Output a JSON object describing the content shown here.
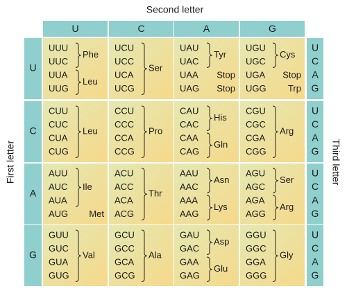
{
  "labels": {
    "second": "Second letter",
    "first": "First letter",
    "third": "Third letter"
  },
  "columns": [
    "U",
    "C",
    "A",
    "G"
  ],
  "rows": [
    {
      "first": "U",
      "third": [
        "U",
        "C",
        "A",
        "G"
      ],
      "cells": [
        {
          "groups": [
            {
              "amino_acid": "Phe",
              "codons": [
                "UUU",
                "UUC"
              ]
            },
            {
              "amino_acid": "Leu",
              "codons": [
                "UUA",
                "UUG"
              ]
            }
          ]
        },
        {
          "groups": [
            {
              "amino_acid": "Ser",
              "codons": [
                "UCU",
                "UCC",
                "UCA",
                "UCG"
              ]
            }
          ]
        },
        {
          "groups": [
            {
              "amino_acid": "Tyr",
              "codons": [
                "UAU",
                "UAC"
              ]
            },
            {
              "amino_acid": "Stop",
              "codons": [
                "UAA"
              ]
            },
            {
              "amino_acid": "Stop",
              "codons": [
                "UAG"
              ]
            }
          ]
        },
        {
          "groups": [
            {
              "amino_acid": "Cys",
              "codons": [
                "UGU",
                "UGC"
              ]
            },
            {
              "amino_acid": "Stop",
              "codons": [
                "UGA"
              ]
            },
            {
              "amino_acid": "Trp",
              "codons": [
                "UGG"
              ]
            }
          ]
        }
      ]
    },
    {
      "first": "C",
      "third": [
        "U",
        "C",
        "A",
        "G"
      ],
      "cells": [
        {
          "groups": [
            {
              "amino_acid": "Leu",
              "codons": [
                "CUU",
                "CUC",
                "CUA",
                "CUG"
              ]
            }
          ]
        },
        {
          "groups": [
            {
              "amino_acid": "Pro",
              "codons": [
                "CCU",
                "CCC",
                "CCA",
                "CCG"
              ]
            }
          ]
        },
        {
          "groups": [
            {
              "amino_acid": "His",
              "codons": [
                "CAU",
                "CAC"
              ]
            },
            {
              "amino_acid": "Gln",
              "codons": [
                "CAA",
                "CAG"
              ]
            }
          ]
        },
        {
          "groups": [
            {
              "amino_acid": "Arg",
              "codons": [
                "CGU",
                "CGC",
                "CGA",
                "CGG"
              ]
            }
          ]
        }
      ]
    },
    {
      "first": "A",
      "third": [
        "U",
        "C",
        "A",
        "G"
      ],
      "cells": [
        {
          "groups": [
            {
              "amino_acid": "Ile",
              "codons": [
                "AUU",
                "AUC",
                "AUA"
              ]
            },
            {
              "amino_acid": "Met",
              "codons": [
                "AUG"
              ]
            }
          ]
        },
        {
          "groups": [
            {
              "amino_acid": "Thr",
              "codons": [
                "ACU",
                "ACC",
                "ACA",
                "ACG"
              ]
            }
          ]
        },
        {
          "groups": [
            {
              "amino_acid": "Asn",
              "codons": [
                "AAU",
                "AAC"
              ]
            },
            {
              "amino_acid": "Lys",
              "codons": [
                "AAA",
                "AAG"
              ]
            }
          ]
        },
        {
          "groups": [
            {
              "amino_acid": "Ser",
              "codons": [
                "AGU",
                "AGC"
              ]
            },
            {
              "amino_acid": "Arg",
              "codons": [
                "AGA",
                "AGG"
              ]
            }
          ]
        }
      ]
    },
    {
      "first": "G",
      "third": [
        "U",
        "C",
        "A",
        "G"
      ],
      "cells": [
        {
          "groups": [
            {
              "amino_acid": "Val",
              "codons": [
                "GUU",
                "GUC",
                "GUA",
                "GUG"
              ]
            }
          ]
        },
        {
          "groups": [
            {
              "amino_acid": "Ala",
              "codons": [
                "GCU",
                "GCC",
                "GCA",
                "GCG"
              ]
            }
          ]
        },
        {
          "groups": [
            {
              "amino_acid": "Asp",
              "codons": [
                "GAU",
                "GAC"
              ]
            },
            {
              "amino_acid": "Glu",
              "codons": [
                "GAA",
                "GAG"
              ]
            }
          ]
        },
        {
          "groups": [
            {
              "amino_acid": "Gly",
              "codons": [
                "GGU",
                "GGC",
                "GGA",
                "GGG"
              ]
            }
          ]
        }
      ]
    }
  ]
}
